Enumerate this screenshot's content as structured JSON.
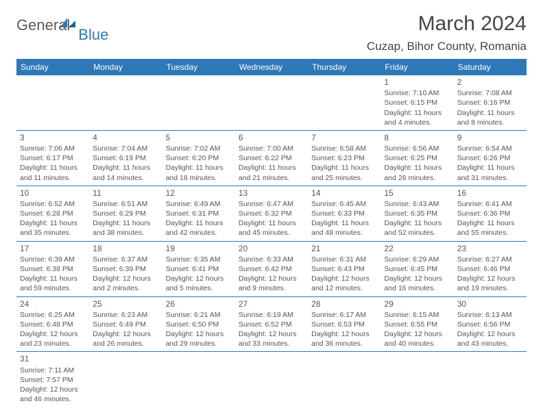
{
  "logo": {
    "text1": "General",
    "text2": "Blue"
  },
  "title": "March 2024",
  "location": "Cuzap, Bihor County, Romania",
  "header_bg": "#2f78b7",
  "days": [
    "Sunday",
    "Monday",
    "Tuesday",
    "Wednesday",
    "Thursday",
    "Friday",
    "Saturday"
  ],
  "weeks": [
    [
      null,
      null,
      null,
      null,
      null,
      {
        "n": "1",
        "sr": "Sunrise: 7:10 AM",
        "ss": "Sunset: 6:15 PM",
        "d1": "Daylight: 11 hours",
        "d2": "and 4 minutes."
      },
      {
        "n": "2",
        "sr": "Sunrise: 7:08 AM",
        "ss": "Sunset: 6:16 PM",
        "d1": "Daylight: 11 hours",
        "d2": "and 8 minutes."
      }
    ],
    [
      {
        "n": "3",
        "sr": "Sunrise: 7:06 AM",
        "ss": "Sunset: 6:17 PM",
        "d1": "Daylight: 11 hours",
        "d2": "and 11 minutes."
      },
      {
        "n": "4",
        "sr": "Sunrise: 7:04 AM",
        "ss": "Sunset: 6:19 PM",
        "d1": "Daylight: 11 hours",
        "d2": "and 14 minutes."
      },
      {
        "n": "5",
        "sr": "Sunrise: 7:02 AM",
        "ss": "Sunset: 6:20 PM",
        "d1": "Daylight: 11 hours",
        "d2": "and 18 minutes."
      },
      {
        "n": "6",
        "sr": "Sunrise: 7:00 AM",
        "ss": "Sunset: 6:22 PM",
        "d1": "Daylight: 11 hours",
        "d2": "and 21 minutes."
      },
      {
        "n": "7",
        "sr": "Sunrise: 6:58 AM",
        "ss": "Sunset: 6:23 PM",
        "d1": "Daylight: 11 hours",
        "d2": "and 25 minutes."
      },
      {
        "n": "8",
        "sr": "Sunrise: 6:56 AM",
        "ss": "Sunset: 6:25 PM",
        "d1": "Daylight: 11 hours",
        "d2": "and 28 minutes."
      },
      {
        "n": "9",
        "sr": "Sunrise: 6:54 AM",
        "ss": "Sunset: 6:26 PM",
        "d1": "Daylight: 11 hours",
        "d2": "and 31 minutes."
      }
    ],
    [
      {
        "n": "10",
        "sr": "Sunrise: 6:52 AM",
        "ss": "Sunset: 6:28 PM",
        "d1": "Daylight: 11 hours",
        "d2": "and 35 minutes."
      },
      {
        "n": "11",
        "sr": "Sunrise: 6:51 AM",
        "ss": "Sunset: 6:29 PM",
        "d1": "Daylight: 11 hours",
        "d2": "and 38 minutes."
      },
      {
        "n": "12",
        "sr": "Sunrise: 6:49 AM",
        "ss": "Sunset: 6:31 PM",
        "d1": "Daylight: 11 hours",
        "d2": "and 42 minutes."
      },
      {
        "n": "13",
        "sr": "Sunrise: 6:47 AM",
        "ss": "Sunset: 6:32 PM",
        "d1": "Daylight: 11 hours",
        "d2": "and 45 minutes."
      },
      {
        "n": "14",
        "sr": "Sunrise: 6:45 AM",
        "ss": "Sunset: 6:33 PM",
        "d1": "Daylight: 11 hours",
        "d2": "and 48 minutes."
      },
      {
        "n": "15",
        "sr": "Sunrise: 6:43 AM",
        "ss": "Sunset: 6:35 PM",
        "d1": "Daylight: 11 hours",
        "d2": "and 52 minutes."
      },
      {
        "n": "16",
        "sr": "Sunrise: 6:41 AM",
        "ss": "Sunset: 6:36 PM",
        "d1": "Daylight: 11 hours",
        "d2": "and 55 minutes."
      }
    ],
    [
      {
        "n": "17",
        "sr": "Sunrise: 6:39 AM",
        "ss": "Sunset: 6:38 PM",
        "d1": "Daylight: 11 hours",
        "d2": "and 59 minutes."
      },
      {
        "n": "18",
        "sr": "Sunrise: 6:37 AM",
        "ss": "Sunset: 6:39 PM",
        "d1": "Daylight: 12 hours",
        "d2": "and 2 minutes."
      },
      {
        "n": "19",
        "sr": "Sunrise: 6:35 AM",
        "ss": "Sunset: 6:41 PM",
        "d1": "Daylight: 12 hours",
        "d2": "and 5 minutes."
      },
      {
        "n": "20",
        "sr": "Sunrise: 6:33 AM",
        "ss": "Sunset: 6:42 PM",
        "d1": "Daylight: 12 hours",
        "d2": "and 9 minutes."
      },
      {
        "n": "21",
        "sr": "Sunrise: 6:31 AM",
        "ss": "Sunset: 6:43 PM",
        "d1": "Daylight: 12 hours",
        "d2": "and 12 minutes."
      },
      {
        "n": "22",
        "sr": "Sunrise: 6:29 AM",
        "ss": "Sunset: 6:45 PM",
        "d1": "Daylight: 12 hours",
        "d2": "and 16 minutes."
      },
      {
        "n": "23",
        "sr": "Sunrise: 6:27 AM",
        "ss": "Sunset: 6:46 PM",
        "d1": "Daylight: 12 hours",
        "d2": "and 19 minutes."
      }
    ],
    [
      {
        "n": "24",
        "sr": "Sunrise: 6:25 AM",
        "ss": "Sunset: 6:48 PM",
        "d1": "Daylight: 12 hours",
        "d2": "and 23 minutes."
      },
      {
        "n": "25",
        "sr": "Sunrise: 6:23 AM",
        "ss": "Sunset: 6:49 PM",
        "d1": "Daylight: 12 hours",
        "d2": "and 26 minutes."
      },
      {
        "n": "26",
        "sr": "Sunrise: 6:21 AM",
        "ss": "Sunset: 6:50 PM",
        "d1": "Daylight: 12 hours",
        "d2": "and 29 minutes."
      },
      {
        "n": "27",
        "sr": "Sunrise: 6:19 AM",
        "ss": "Sunset: 6:52 PM",
        "d1": "Daylight: 12 hours",
        "d2": "and 33 minutes."
      },
      {
        "n": "28",
        "sr": "Sunrise: 6:17 AM",
        "ss": "Sunset: 6:53 PM",
        "d1": "Daylight: 12 hours",
        "d2": "and 36 minutes."
      },
      {
        "n": "29",
        "sr": "Sunrise: 6:15 AM",
        "ss": "Sunset: 6:55 PM",
        "d1": "Daylight: 12 hours",
        "d2": "and 40 minutes."
      },
      {
        "n": "30",
        "sr": "Sunrise: 6:13 AM",
        "ss": "Sunset: 6:56 PM",
        "d1": "Daylight: 12 hours",
        "d2": "and 43 minutes."
      }
    ],
    [
      {
        "n": "31",
        "sr": "Sunrise: 7:11 AM",
        "ss": "Sunset: 7:57 PM",
        "d1": "Daylight: 12 hours",
        "d2": "and 46 minutes."
      },
      null,
      null,
      null,
      null,
      null,
      null
    ]
  ]
}
